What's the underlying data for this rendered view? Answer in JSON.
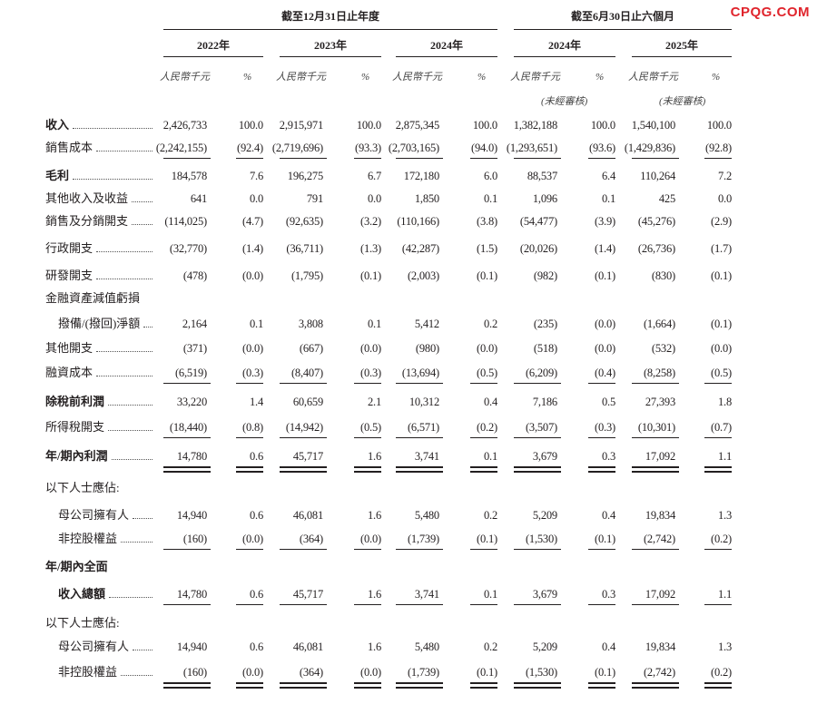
{
  "watermark": "CPQG.COM",
  "header": {
    "groups": [
      "截至12月31日止年度",
      "截至6月30日止六個月"
    ],
    "years": [
      "2022年",
      "2023年",
      "2024年",
      "2024年",
      "2025年"
    ],
    "unit_labels": [
      "人民幣千元",
      "%",
      "人民幣千元",
      "%",
      "人民幣千元",
      "%",
      "人民幣千元",
      "%",
      "人民幣千元",
      "%"
    ],
    "notes": [
      "(未經審核)",
      "(未經審核)"
    ]
  },
  "table": {
    "rows": [
      {
        "label": "收入",
        "cells": [
          "2,426,733",
          "100.0",
          "2,915,971",
          "100.0",
          "2,875,345",
          "100.0",
          "1,382,188",
          "100.0",
          "1,540,100",
          "100.0"
        ]
      },
      {
        "label": "銷售成本",
        "cells": [
          "(2,242,155)",
          "(92.4)",
          "(2,719,696)",
          "(93.3)",
          "(2,703,165)",
          "(94.0)",
          "(1,293,651)",
          "(93.6)",
          "(1,429,836)",
          "(92.8)"
        ]
      },
      {
        "label": "毛利",
        "cells": [
          "184,578",
          "7.6",
          "196,275",
          "6.7",
          "172,180",
          "6.0",
          "88,537",
          "6.4",
          "110,264",
          "7.2"
        ]
      },
      {
        "label": "其他收入及收益",
        "cells": [
          "641",
          "0.0",
          "791",
          "0.0",
          "1,850",
          "0.1",
          "1,096",
          "0.1",
          "425",
          "0.0"
        ]
      },
      {
        "label": "銷售及分銷開支",
        "cells": [
          "(114,025)",
          "(4.7)",
          "(92,635)",
          "(3.2)",
          "(110,166)",
          "(3.8)",
          "(54,477)",
          "(3.9)",
          "(45,276)",
          "(2.9)"
        ]
      },
      {
        "label": "行政開支",
        "cells": [
          "(32,770)",
          "(1.4)",
          "(36,711)",
          "(1.3)",
          "(42,287)",
          "(1.5)",
          "(20,026)",
          "(1.4)",
          "(26,736)",
          "(1.7)"
        ]
      },
      {
        "label": "研發開支",
        "cells": [
          "(478)",
          "(0.0)",
          "(1,795)",
          "(0.1)",
          "(2,003)",
          "(0.1)",
          "(982)",
          "(0.1)",
          "(830)",
          "(0.1)"
        ]
      },
      {
        "label": "金融資產減值虧損"
      },
      {
        "label": "撥備/(撥回)淨額",
        "cells": [
          "2,164",
          "0.1",
          "3,808",
          "0.1",
          "5,412",
          "0.2",
          "(235)",
          "(0.0)",
          "(1,664)",
          "(0.1)"
        ]
      },
      {
        "label": "其他開支",
        "cells": [
          "(371)",
          "(0.0)",
          "(667)",
          "(0.0)",
          "(980)",
          "(0.0)",
          "(518)",
          "(0.0)",
          "(532)",
          "(0.0)"
        ]
      },
      {
        "label": "融資成本",
        "cells": [
          "(6,519)",
          "(0.3)",
          "(8,407)",
          "(0.3)",
          "(13,694)",
          "(0.5)",
          "(6,209)",
          "(0.4)",
          "(8,258)",
          "(0.5)"
        ]
      },
      {
        "label": "除稅前利潤",
        "cells": [
          "33,220",
          "1.4",
          "60,659",
          "2.1",
          "10,312",
          "0.4",
          "7,186",
          "0.5",
          "27,393",
          "1.8"
        ]
      },
      {
        "label": "所得稅開支",
        "cells": [
          "(18,440)",
          "(0.8)",
          "(14,942)",
          "(0.5)",
          "(6,571)",
          "(0.2)",
          "(3,507)",
          "(0.3)",
          "(10,301)",
          "(0.7)"
        ]
      },
      {
        "label": "年/期內利潤",
        "cells": [
          "14,780",
          "0.6",
          "45,717",
          "1.6",
          "3,741",
          "0.1",
          "3,679",
          "0.3",
          "17,092",
          "1.1"
        ]
      },
      {
        "label": "以下人士應佔:"
      },
      {
        "label": "母公司擁有人",
        "cells": [
          "14,940",
          "0.6",
          "46,081",
          "1.6",
          "5,480",
          "0.2",
          "5,209",
          "0.4",
          "19,834",
          "1.3"
        ]
      },
      {
        "label": "非控股權益",
        "cells": [
          "(160)",
          "(0.0)",
          "(364)",
          "(0.0)",
          "(1,739)",
          "(0.1)",
          "(1,530)",
          "(0.1)",
          "(2,742)",
          "(0.2)"
        ]
      },
      {
        "label": "年/期內全面"
      },
      {
        "label": "收入總額",
        "cells": [
          "14,780",
          "0.6",
          "45,717",
          "1.6",
          "3,741",
          "0.1",
          "3,679",
          "0.3",
          "17,092",
          "1.1"
        ]
      },
      {
        "label": "以下人士應佔:"
      },
      {
        "label": "母公司擁有人",
        "cells": [
          "14,940",
          "0.6",
          "46,081",
          "1.6",
          "5,480",
          "0.2",
          "5,209",
          "0.4",
          "19,834",
          "1.3"
        ]
      },
      {
        "label": "非控股權益",
        "cells": [
          "(160)",
          "(0.0)",
          "(364)",
          "(0.0)",
          "(1,739)",
          "(0.1)",
          "(1,530)",
          "(0.1)",
          "(2,742)",
          "(0.2)"
        ]
      }
    ]
  }
}
